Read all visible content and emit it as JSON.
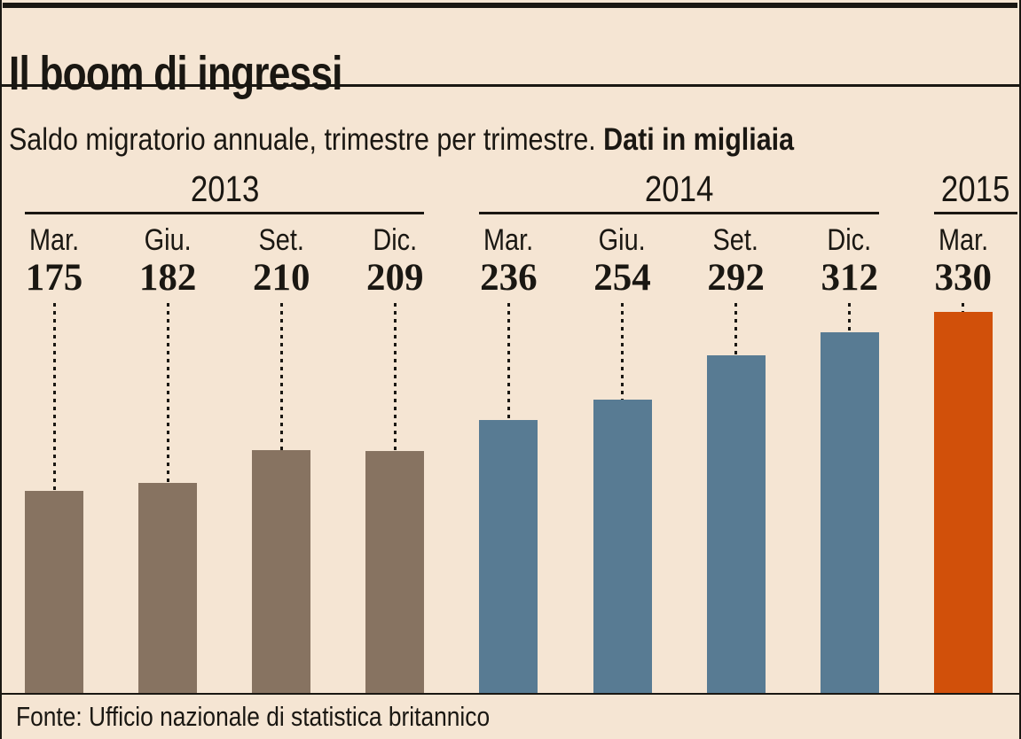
{
  "page": {
    "title": "Il boom di ingressi",
    "subtitle_regular": "Saldo migratorio annuale, trimestre per trimestre. ",
    "subtitle_bold": "Dati in migliaia",
    "source": "Fonte: Ufficio nazionale di statistica britannico"
  },
  "colors": {
    "background": "#f5e5d3",
    "ink": "#1a1712",
    "bar_2013": "#877361",
    "bar_2014": "#587b93",
    "bar_2015": "#d1500a"
  },
  "chart_data": {
    "type": "bar",
    "title": "Il boom di ingressi",
    "subtitle": "Saldo migratorio annuale, trimestre per trimestre. Dati in migliaia",
    "unit": "migliaia (thousands)",
    "ylim": [
      0,
      340
    ],
    "grid": false,
    "legend": false,
    "source": "Fonte: Ufficio nazionale di statistica britannico",
    "groups": [
      {
        "year": "2013",
        "color": "#877361",
        "bars": [
          {
            "label": "Mar.",
            "value": 175
          },
          {
            "label": "Giu.",
            "value": 182
          },
          {
            "label": "Set.",
            "value": 210
          },
          {
            "label": "Dic.",
            "value": 209
          }
        ]
      },
      {
        "year": "2014",
        "color": "#587b93",
        "bars": [
          {
            "label": "Mar.",
            "value": 236
          },
          {
            "label": "Giu.",
            "value": 254
          },
          {
            "label": "Set.",
            "value": 292
          },
          {
            "label": "Dic.",
            "value": 312
          }
        ]
      },
      {
        "year": "2015",
        "color": "#d1500a",
        "bars": [
          {
            "label": "Mar.",
            "value": 330
          }
        ]
      }
    ]
  }
}
